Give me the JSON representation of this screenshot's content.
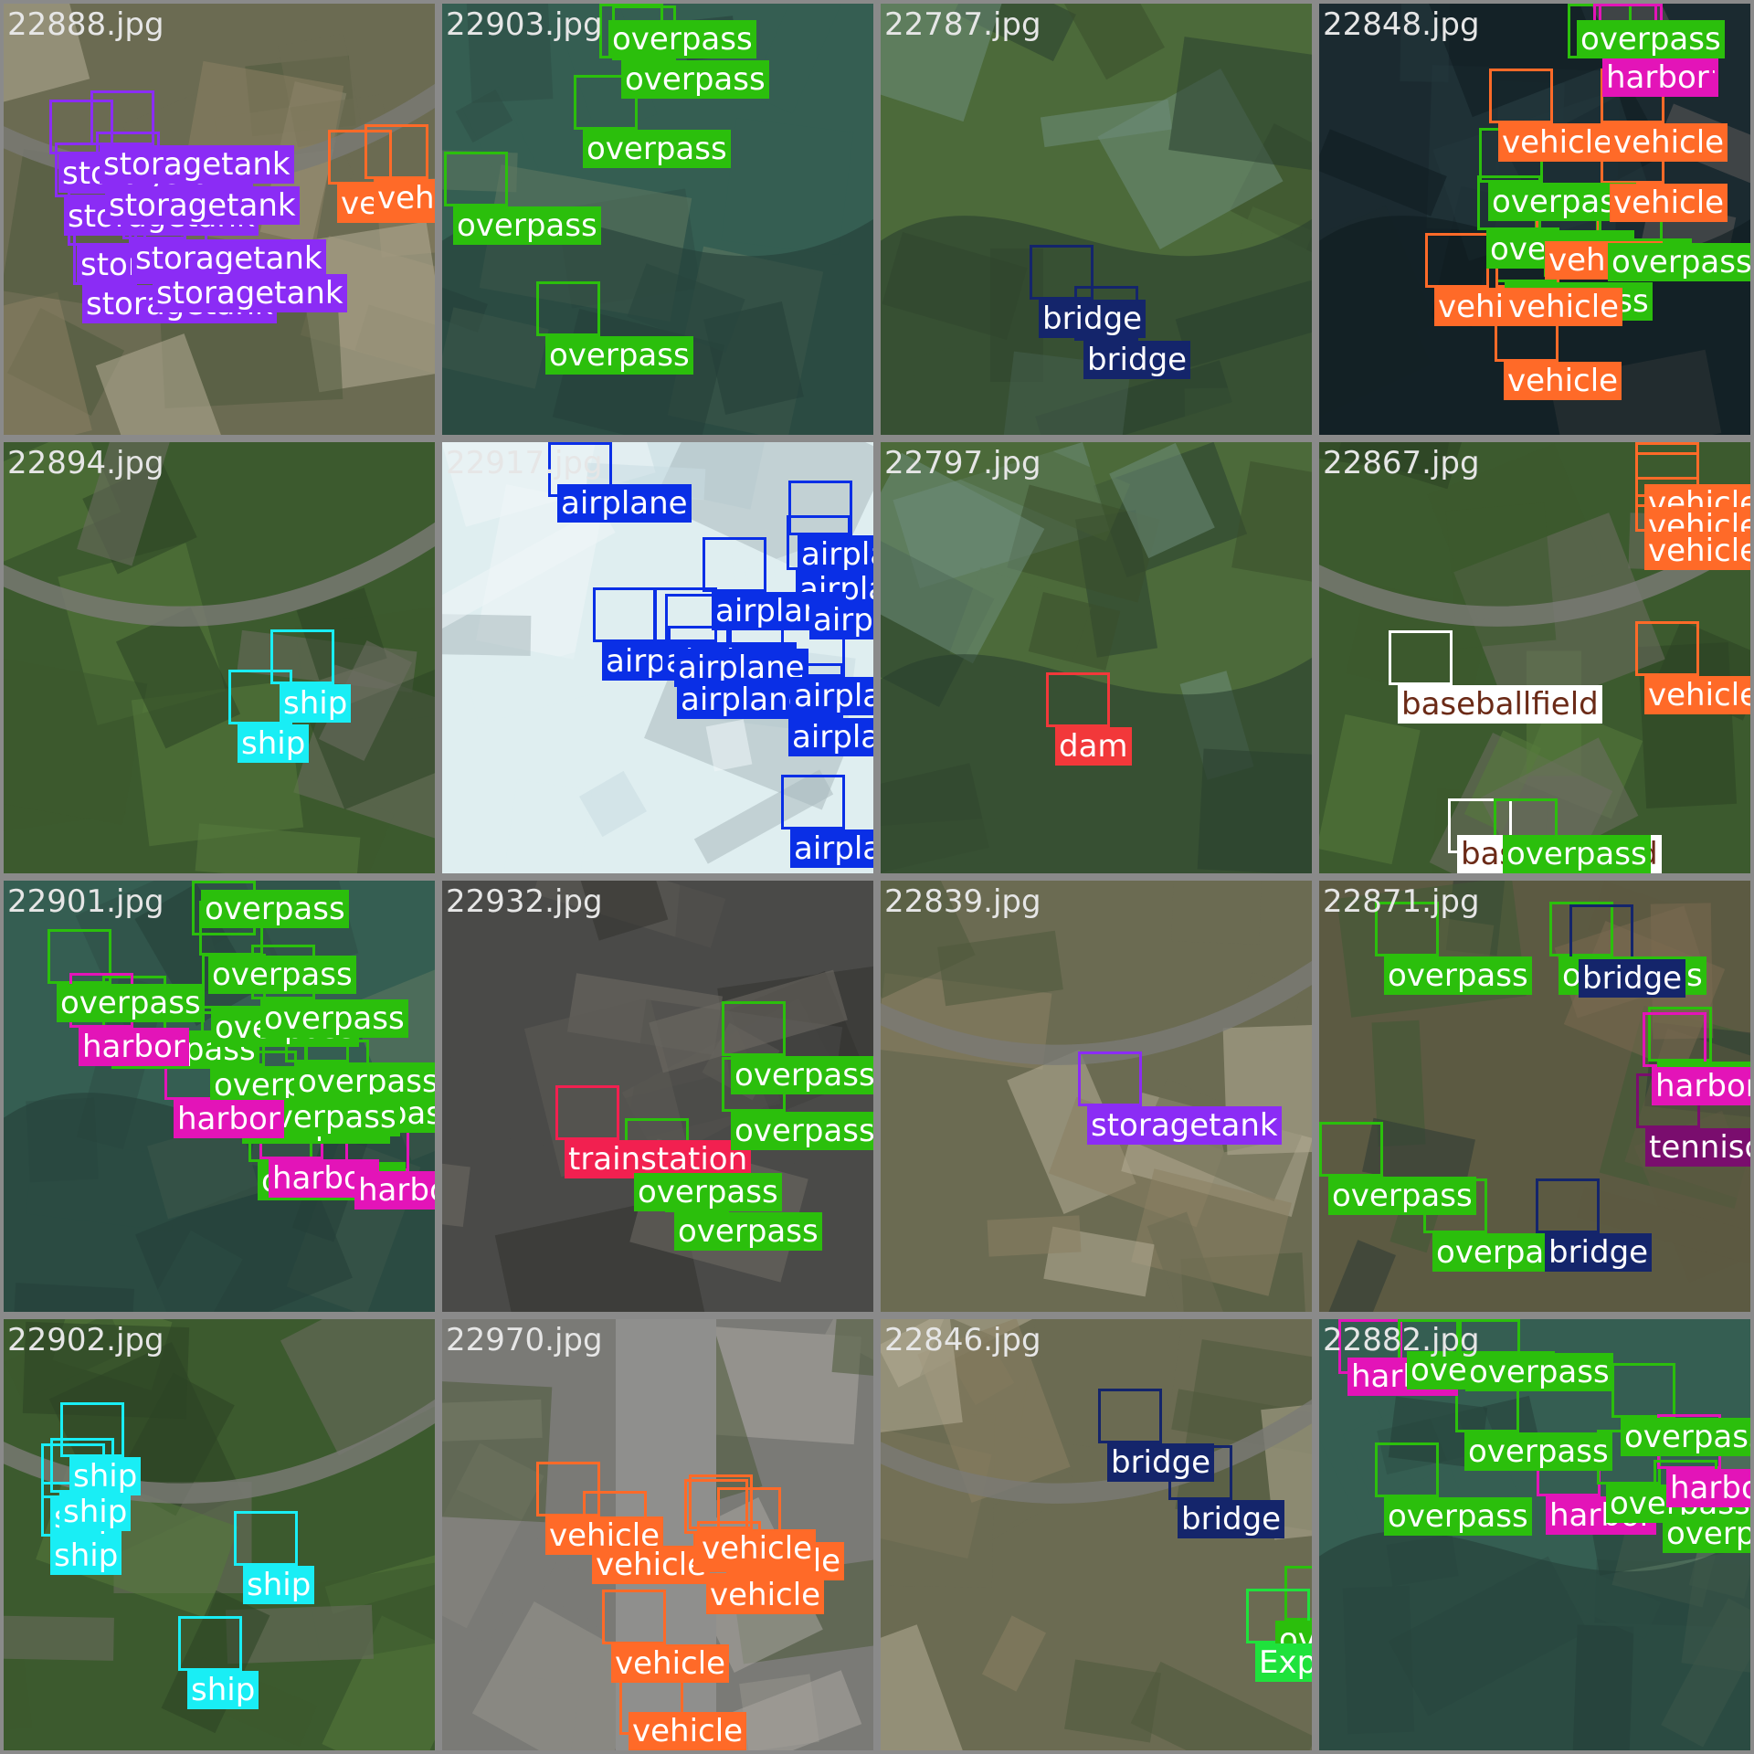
{
  "classes": {
    "storagetank": {
      "bg": "#8b2cf5",
      "fg": "#ffffff"
    },
    "vehicle": {
      "bg": "#ff6a28",
      "fg": "#ffffff"
    },
    "overpass": {
      "bg": "#2bbf0c",
      "fg": "#ffffff"
    },
    "bridge": {
      "bg": "#14256b",
      "fg": "#ffffff"
    },
    "harbor": {
      "bg": "#e314b8",
      "fg": "#ffffff"
    },
    "ship": {
      "bg": "#19eef5",
      "fg": "#ffffff"
    },
    "airplane": {
      "bg": "#0a2fe6",
      "fg": "#ffffff"
    },
    "dam": {
      "bg": "#f2383a",
      "fg": "#ffffff"
    },
    "baseballfield": {
      "bg": "#ffffff",
      "fg": "#6b2a17"
    },
    "trainstation": {
      "bg": "#f22050",
      "fg": "#ffffff"
    },
    "tenniscourt": {
      "bg": "#7a0d6e",
      "fg": "#ffffff"
    },
    "Expressway-toll-station": {
      "bg": "#1fe23c",
      "fg": "#ffffff"
    }
  },
  "tiles": [
    {
      "filename": "22888.jpg",
      "scene": "rural",
      "labels": [
        "storagetank",
        "storagetank",
        "storagetank",
        "storagetank",
        "storagetank",
        "storagetank",
        "storagetank",
        "storagetank",
        "vehicle",
        "vehicle"
      ]
    },
    {
      "filename": "22903.jpg",
      "scene": "water",
      "labels": [
        "overpass",
        "overpass",
        "overpass",
        "overpass",
        "overpass"
      ]
    },
    {
      "filename": "22787.jpg",
      "scene": "river",
      "labels": [
        "bridge",
        "bridge"
      ]
    },
    {
      "filename": "22848.jpg",
      "scene": "pier",
      "labels": [
        "overpass",
        "harbor",
        "harbor",
        "vehicle",
        "vehicle",
        "overpass",
        "vehicle",
        "overpass",
        "overpass",
        "vehicle",
        "overpass",
        "overpass",
        "vehicle",
        "vehicle",
        "vehicle"
      ]
    },
    {
      "filename": "22894.jpg",
      "scene": "green",
      "labels": [
        "ship",
        "ship"
      ]
    },
    {
      "filename": "22917.jpg",
      "scene": "airport",
      "labels": [
        "airplane",
        "airplane",
        "airplane",
        "airplane",
        "airplane",
        "airplane",
        "airplane",
        "airplane",
        "airplane",
        "airplane",
        "airplane",
        "airplane"
      ]
    },
    {
      "filename": "22797.jpg",
      "scene": "river",
      "labels": [
        "dam"
      ]
    },
    {
      "filename": "22867.jpg",
      "scene": "green",
      "labels": [
        "vehicle",
        "vehicle",
        "vehicle",
        "vehicle",
        "baseballfield",
        "baseballfield",
        "overpass"
      ]
    },
    {
      "filename": "22901.jpg",
      "scene": "water",
      "labels": [
        "overpass",
        "overpass",
        "overpass",
        "overpass",
        "overpass",
        "overpass",
        "overpass",
        "overpass",
        "overpass",
        "overpass",
        "overpass",
        "overpass",
        "harbor",
        "harbor",
        "harbor",
        "harbor"
      ]
    },
    {
      "filename": "22932.jpg",
      "scene": "city",
      "labels": [
        "trainstation",
        "overpass",
        "overpass",
        "overpass",
        "overpass"
      ]
    },
    {
      "filename": "22839.jpg",
      "scene": "rural",
      "labels": [
        "storagetank"
      ]
    },
    {
      "filename": "22871.jpg",
      "scene": "suburb",
      "labels": [
        "overpass",
        "overpass",
        "bridge",
        "overpass",
        "harbor",
        "tenniscourt",
        "overpass",
        "overpass",
        "bridge"
      ]
    },
    {
      "filename": "22902.jpg",
      "scene": "green",
      "labels": [
        "ship",
        "ship",
        "ship",
        "ship",
        "ship",
        "ship"
      ]
    },
    {
      "filename": "22970.jpg",
      "scene": "street",
      "labels": [
        "vehicle",
        "vehicle",
        "vehicle",
        "vehicle",
        "vehicle",
        "vehicle",
        "vehicle",
        "vehicle"
      ]
    },
    {
      "filename": "22846.jpg",
      "scene": "rural",
      "labels": [
        "bridge",
        "bridge",
        "overpass",
        "Expressway-toll-station"
      ]
    },
    {
      "filename": "22882.jpg",
      "scene": "water",
      "labels": [
        "harbor",
        "overpass",
        "overpass",
        "overpass",
        "overpass",
        "harbor",
        "overpass",
        "harbor",
        "overpass",
        "overpass"
      ]
    }
  ]
}
